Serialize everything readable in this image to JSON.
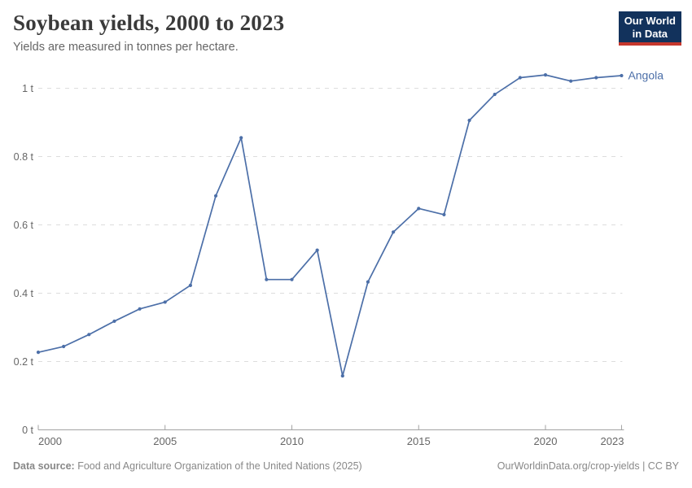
{
  "header": {
    "title": "Soybean yields, 2000 to 2023",
    "subtitle": "Yields are measured in tonnes per hectare.",
    "logo": {
      "line1": "Our World",
      "line2": "in Data"
    }
  },
  "chart_data": {
    "type": "line",
    "title": "Soybean yields, 2000 to 2023",
    "subtitle": "Yields are measured in tonnes per hectare.",
    "unit": "tonnes per hectare",
    "xlabel": "",
    "ylabel": "",
    "xlim": [
      2000,
      2023
    ],
    "ylim": [
      0,
      1.05
    ],
    "grid": "horizontal-dashed",
    "legend_position": "end-of-line-label",
    "xticks": [
      2000,
      2005,
      2010,
      2015,
      2020,
      2023
    ],
    "yticks": [
      {
        "value": 0,
        "label": "0 t"
      },
      {
        "value": 0.2,
        "label": "0.2 t"
      },
      {
        "value": 0.4,
        "label": "0.4 t"
      },
      {
        "value": 0.6,
        "label": "0.6 t"
      },
      {
        "value": 0.8,
        "label": "0.8 t"
      },
      {
        "value": 1,
        "label": "1 t"
      }
    ],
    "series": [
      {
        "name": "Angola",
        "color": "#4C6FA8",
        "x": [
          2000,
          2001,
          2002,
          2003,
          2004,
          2005,
          2006,
          2007,
          2008,
          2009,
          2010,
          2011,
          2012,
          2013,
          2014,
          2015,
          2016,
          2017,
          2018,
          2019,
          2020,
          2021,
          2022,
          2023
        ],
        "values": [
          0.227,
          0.244,
          0.279,
          0.318,
          0.354,
          0.374,
          0.423,
          0.685,
          0.855,
          0.44,
          0.44,
          0.526,
          0.158,
          0.433,
          0.579,
          0.648,
          0.63,
          0.906,
          0.982,
          1.031,
          1.039,
          1.021,
          1.031,
          1.037
        ]
      }
    ]
  },
  "footer": {
    "datasource_label": "Data source:",
    "datasource_text": " Food and Agriculture Organization of the United Nations (2025)",
    "link_text": "OurWorldinData.org/crop-yields | CC BY"
  },
  "colors": {
    "line": "#4C6FA8",
    "grid": "#dddddd",
    "axis": "#a3a3a3",
    "tick_text": "#666666",
    "title_text": "#3a3a3a",
    "subtitle_text": "#666666",
    "footer_text": "#888888",
    "logo_bg": "#12325c",
    "logo_red": "#c5372d"
  }
}
